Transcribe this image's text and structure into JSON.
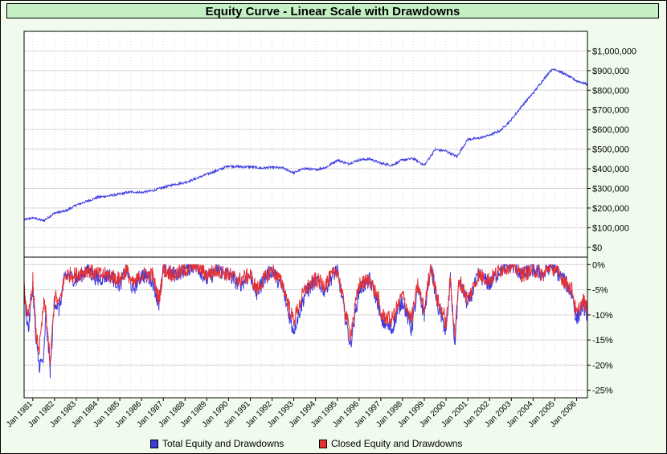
{
  "colors": {
    "total_series": "#3a3ae0",
    "closed_series": "#e83030",
    "panel_bg": "#ffffff",
    "page_bg": "#f0fbee",
    "title_bg": "#c4f0c4",
    "grid": "#d6d6d6"
  },
  "chart_data": [
    {
      "type": "line",
      "title": "Equity Curve - Linear Scale with Drawdowns",
      "xlabel": "",
      "ylabel": "",
      "x_range": [
        1980.6,
        2006.5
      ],
      "ylim": [
        -50000,
        1100000
      ],
      "y_tick_labels": [
        "$1,000,000",
        "$900,000",
        "$800,000",
        "$700,000",
        "$600,000",
        "$500,000",
        "$400,000",
        "$300,000",
        "$200,000",
        "$100,000",
        "$0"
      ],
      "y_tick_values": [
        1000000,
        900000,
        800000,
        700000,
        600000,
        500000,
        400000,
        300000,
        200000,
        100000,
        0
      ],
      "grid": true,
      "series": [
        {
          "name": "Total Equity and Drawdowns",
          "x": [
            1980.6,
            1981.0,
            1981.5,
            1982.0,
            1982.5,
            1983.0,
            1983.5,
            1984.0,
            1984.5,
            1985.0,
            1985.5,
            1986.0,
            1986.5,
            1987.0,
            1987.5,
            1988.0,
            1988.5,
            1989.0,
            1989.5,
            1990.0,
            1990.5,
            1991.0,
            1991.5,
            1992.0,
            1992.5,
            1993.0,
            1993.5,
            1994.0,
            1994.5,
            1995.0,
            1995.5,
            1996.0,
            1996.5,
            1997.0,
            1997.5,
            1998.0,
            1998.5,
            1999.0,
            1999.5,
            2000.0,
            2000.5,
            2001.0,
            2001.5,
            2002.0,
            2002.5,
            2003.0,
            2003.5,
            2004.0,
            2004.5,
            2004.8,
            2005.0,
            2005.5,
            2006.0,
            2006.5
          ],
          "values": [
            140000,
            150000,
            135000,
            175000,
            185000,
            215000,
            235000,
            255000,
            262000,
            272000,
            282000,
            280000,
            288000,
            305000,
            320000,
            330000,
            350000,
            372000,
            392000,
            415000,
            410000,
            410000,
            403000,
            408000,
            403000,
            380000,
            402000,
            395000,
            408000,
            445000,
            425000,
            445000,
            450000,
            428000,
            418000,
            445000,
            452000,
            418000,
            498000,
            490000,
            462000,
            550000,
            555000,
            572000,
            595000,
            650000,
            722000,
            785000,
            858000,
            900000,
            908000,
            880000,
            848000,
            830000
          ]
        }
      ]
    },
    {
      "type": "line",
      "title": "",
      "xlabel": "",
      "ylabel": "",
      "x_range": [
        1980.6,
        2006.5
      ],
      "ylim": [
        -26.5,
        1.5
      ],
      "y_tick_labels": [
        "0%",
        "-5%",
        "-10%",
        "-15%",
        "-20%",
        "-25%"
      ],
      "y_tick_values": [
        0,
        -5,
        -10,
        -15,
        -20,
        -25
      ],
      "grid": true,
      "legend": "bottom",
      "x_tick_labels": [
        "Jan 1981",
        "Jan 1982",
        "Jan 1983",
        "Jan 1984",
        "Jan 1985",
        "Jan 1986",
        "Jan 1987",
        "Jan 1988",
        "Jan 1989",
        "Jan 1990",
        "Jan 1991",
        "Jan 1992",
        "Jan 1993",
        "Jan 1994",
        "Jan 1995",
        "Jan 1996",
        "Jan 1997",
        "Jan 1998",
        "Jan 1999",
        "Jan 2000",
        "Jan 2001",
        "Jan 2002",
        "Jan 2003",
        "Jan 2004",
        "Jan 2005",
        "Jan 2006"
      ],
      "x_tick_values": [
        1981,
        1982,
        1983,
        1984,
        1985,
        1986,
        1987,
        1988,
        1989,
        1990,
        1991,
        1992,
        1993,
        1994,
        1995,
        1996,
        1997,
        1998,
        1999,
        2000,
        2001,
        2002,
        2003,
        2004,
        2005,
        2006
      ],
      "series": [
        {
          "name": "Total Equity and Drawdowns",
          "x": [
            1980.6,
            1980.8,
            1981.0,
            1981.15,
            1981.3,
            1981.5,
            1981.6,
            1981.8,
            1982.0,
            1982.2,
            1982.5,
            1983.0,
            1983.5,
            1984.0,
            1984.5,
            1985.0,
            1985.3,
            1985.6,
            1986.0,
            1986.5,
            1986.8,
            1987.0,
            1987.5,
            1988.0,
            1988.5,
            1989.0,
            1989.5,
            1990.0,
            1990.5,
            1991.0,
            1991.3,
            1991.6,
            1992.0,
            1992.5,
            1992.9,
            1993.0,
            1993.5,
            1994.0,
            1994.4,
            1994.8,
            1995.0,
            1995.35,
            1995.6,
            1996.0,
            1996.5,
            1996.9,
            1997.0,
            1997.5,
            1997.8,
            1998.0,
            1998.4,
            1998.7,
            1999.0,
            1999.3,
            1999.6,
            1999.9,
            2000.0,
            2000.2,
            2000.4,
            2000.6,
            2001.0,
            2001.5,
            2002.0,
            2002.5,
            2003.0,
            2003.5,
            2004.0,
            2004.5,
            2004.8,
            2005.0,
            2005.4,
            2005.8,
            2006.0,
            2006.3,
            2006.5
          ],
          "values": [
            -6,
            -13,
            -4,
            -16,
            -20,
            -19,
            -10,
            -21,
            -7,
            -9,
            -2,
            -3,
            -1,
            -3,
            -2,
            -4,
            -1,
            -5,
            -2,
            -3,
            -8,
            -1,
            -2,
            -1,
            0,
            -3,
            -1,
            -2,
            -4,
            -2,
            -6,
            -3,
            -1,
            -5,
            -12,
            -13,
            -6,
            -3,
            -5,
            -2,
            -1,
            -10,
            -16,
            -5,
            -3,
            -8,
            -11,
            -13,
            -9,
            -7,
            -13,
            -5,
            -10,
            0,
            -8,
            -12,
            -14,
            -3,
            -16,
            -3,
            -8,
            -2,
            -4,
            -1,
            0,
            -2,
            -1,
            -2,
            0,
            -1,
            -3,
            -6,
            -11,
            -8,
            -10
          ]
        },
        {
          "name": "Closed Equity and Drawdowns",
          "x": [
            1980.6,
            1980.8,
            1981.0,
            1981.15,
            1981.3,
            1981.5,
            1981.6,
            1981.8,
            1982.0,
            1982.2,
            1982.5,
            1983.0,
            1983.5,
            1984.0,
            1984.5,
            1985.0,
            1985.3,
            1985.6,
            1986.0,
            1986.5,
            1986.8,
            1987.0,
            1987.5,
            1988.0,
            1988.5,
            1989.0,
            1989.5,
            1990.0,
            1990.5,
            1991.0,
            1991.3,
            1991.6,
            1992.0,
            1992.5,
            1992.9,
            1993.0,
            1993.5,
            1994.0,
            1994.4,
            1994.8,
            1995.0,
            1995.35,
            1995.6,
            1996.0,
            1996.5,
            1996.9,
            1997.0,
            1997.5,
            1997.8,
            1998.0,
            1998.4,
            1998.7,
            1999.0,
            1999.3,
            1999.6,
            1999.9,
            2000.0,
            2000.2,
            2000.4,
            2000.6,
            2001.0,
            2001.5,
            2002.0,
            2002.5,
            2003.0,
            2003.5,
            2004.0,
            2004.5,
            2004.8,
            2005.0,
            2005.4,
            2005.8,
            2006.0,
            2006.3,
            2006.5
          ],
          "values": [
            -5,
            -11,
            -3,
            -14,
            -17,
            -8,
            -9,
            -20,
            -6,
            -8,
            -2,
            -2,
            -1,
            -2,
            -2,
            -3,
            -1,
            -4,
            -2,
            -2,
            -7,
            -1,
            -2,
            -1,
            0,
            -2,
            -1,
            -2,
            -3,
            -2,
            -5,
            -3,
            -1,
            -4,
            -10,
            -11,
            -5,
            -3,
            -4,
            -2,
            -1,
            -9,
            -14,
            -4,
            -3,
            -7,
            -10,
            -11,
            -8,
            -6,
            -11,
            -4,
            -9,
            0,
            -7,
            -10,
            -12,
            -3,
            -14,
            -3,
            -7,
            -2,
            -3,
            -1,
            0,
            -2,
            -1,
            -2,
            0,
            -1,
            -3,
            -5,
            -10,
            -7,
            -9
          ]
        }
      ]
    }
  ]
}
